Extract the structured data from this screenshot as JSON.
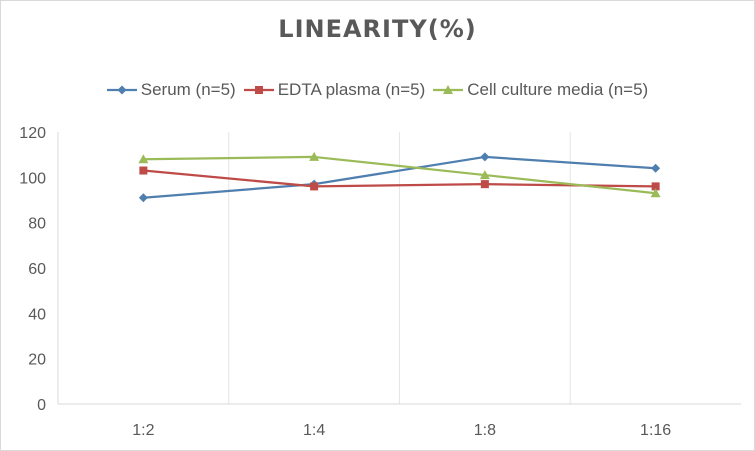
{
  "chart_data": {
    "type": "line",
    "title": "LINEARITY(%)",
    "categories": [
      "1:2",
      "1:4",
      "1:8",
      "1:16"
    ],
    "ylim": [
      0,
      120
    ],
    "yticks": [
      "0",
      "20",
      "40",
      "60",
      "80",
      "100",
      "120"
    ],
    "grid": "vertical",
    "legend": "top",
    "series": [
      {
        "name": "Serum (n=5)",
        "color": "#4f7fae",
        "marker": "diamond",
        "values": [
          91,
          97,
          109,
          104
        ]
      },
      {
        "name": "EDTA plasma (n=5)",
        "color": "#be4b48",
        "marker": "square",
        "values": [
          103,
          96,
          97,
          96
        ]
      },
      {
        "name": "Cell culture media (n=5)",
        "color": "#9bbb59",
        "marker": "triangle",
        "values": [
          108,
          109,
          101,
          93
        ]
      }
    ]
  }
}
